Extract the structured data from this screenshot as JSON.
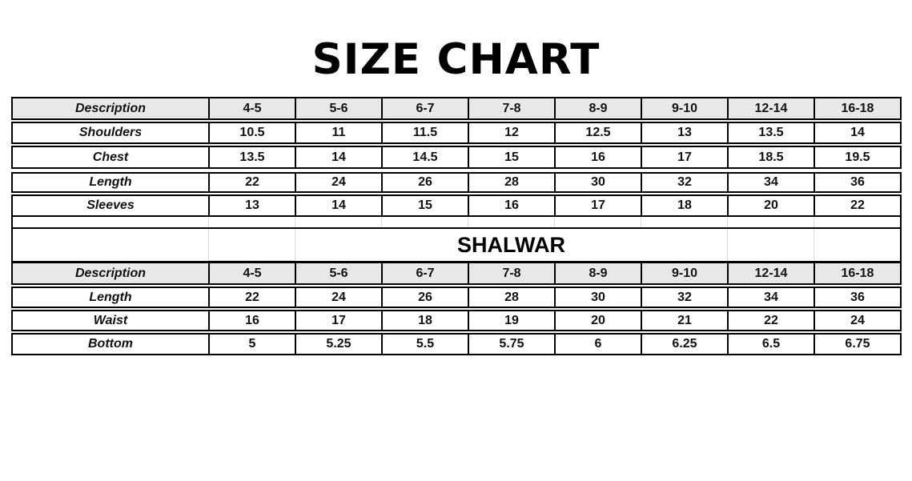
{
  "title": "SIZE CHART",
  "colors": {
    "header_bg": "#e8e8e8",
    "border": "#000000",
    "faint_grid": "#d9d9d9",
    "text": "#111111"
  },
  "table1": {
    "header": [
      "Description",
      "4-5",
      "5-6",
      "6-7",
      "7-8",
      "8-9",
      "9-10",
      "12-14",
      "16-18"
    ],
    "rows": [
      {
        "label": "Shoulders",
        "values": [
          "10.5",
          "11",
          "11.5",
          "12",
          "12.5",
          "13",
          "13.5",
          "14"
        ]
      },
      {
        "label": "Chest",
        "values": [
          "13.5",
          "14",
          "14.5",
          "15",
          "16",
          "17",
          "18.5",
          "19.5"
        ]
      },
      {
        "label": "Length",
        "values": [
          "22",
          "24",
          "26",
          "28",
          "30",
          "32",
          "34",
          "36"
        ]
      },
      {
        "label": "Sleeves",
        "values": [
          "13",
          "14",
          "15",
          "16",
          "17",
          "18",
          "20",
          "22"
        ]
      }
    ]
  },
  "shalwar_title": "SHALWAR",
  "table2": {
    "header": [
      "Description",
      "4-5",
      "5-6",
      "6-7",
      "7-8",
      "8-9",
      "9-10",
      "12-14",
      "16-18"
    ],
    "rows": [
      {
        "label": "Length",
        "values": [
          "22",
          "24",
          "26",
          "28",
          "30",
          "32",
          "34",
          "36"
        ]
      },
      {
        "label": "Waist",
        "values": [
          "16",
          "17",
          "18",
          "19",
          "20",
          "21",
          "22",
          "24"
        ]
      },
      {
        "label": "Bottom",
        "values": [
          "5",
          "5.25",
          "5.5",
          "5.75",
          "6",
          "6.25",
          "6.5",
          "6.75"
        ]
      }
    ]
  }
}
